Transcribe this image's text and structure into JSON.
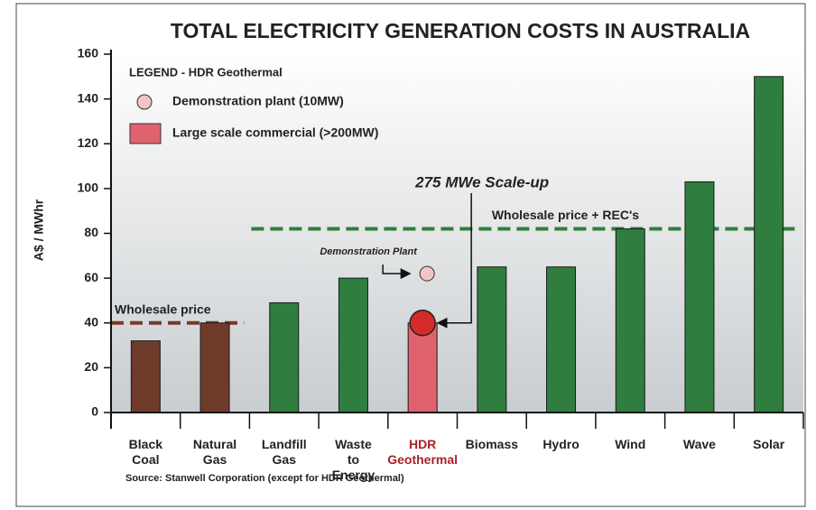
{
  "chart_data": {
    "type": "bar",
    "title": "TOTAL ELECTRICITY GENERATION COSTS IN AUSTRALIA",
    "ylabel": "A$ / MWhr",
    "categories": [
      "Black Coal",
      "Natural Gas",
      "Landfill Gas",
      "Waste to Energy",
      "HDR Geothermal",
      "Biomass",
      "Hydro",
      "Wind",
      "Wave",
      "Solar"
    ],
    "values": [
      32,
      40,
      49,
      60,
      40,
      65,
      65,
      82,
      103,
      150
    ],
    "colors": [
      "#6e3b2b",
      "#6e3b2b",
      "#2f7d3f",
      "#2f7d3f",
      "#e0626f",
      "#2f7d3f",
      "#2f7d3f",
      "#2f7d3f",
      "#2f7d3f",
      "#2f7d3f"
    ],
    "highlight": {
      "index": 4,
      "color": "#a8222a"
    },
    "ylim": [
      0,
      160
    ],
    "yticks": [
      0,
      20,
      40,
      60,
      80,
      100,
      120,
      140,
      160
    ],
    "reference_lines": [
      {
        "label": "Wholesale price",
        "value": 40,
        "color": "#7a3a2a"
      },
      {
        "label": "Wholesale price + REC's",
        "value": 82,
        "color": "#2f7d3f"
      }
    ],
    "demonstration_plant": {
      "label": "Demonstration Plant",
      "value": 62,
      "color": "#f2c4c8"
    },
    "scale_up": {
      "label": "275 MWe Scale-up",
      "color": "#d42a2a"
    },
    "legend": {
      "title": "LEGEND - HDR Geothermal",
      "items": [
        {
          "name": "Demonstration plant (10MW)",
          "color": "#f2c4c8"
        },
        {
          "name": "Large scale commercial (>200MW)",
          "color": "#e0626f"
        }
      ]
    },
    "source": "Source:  Stanwell Corporation (except for HDR Geothermal)"
  }
}
